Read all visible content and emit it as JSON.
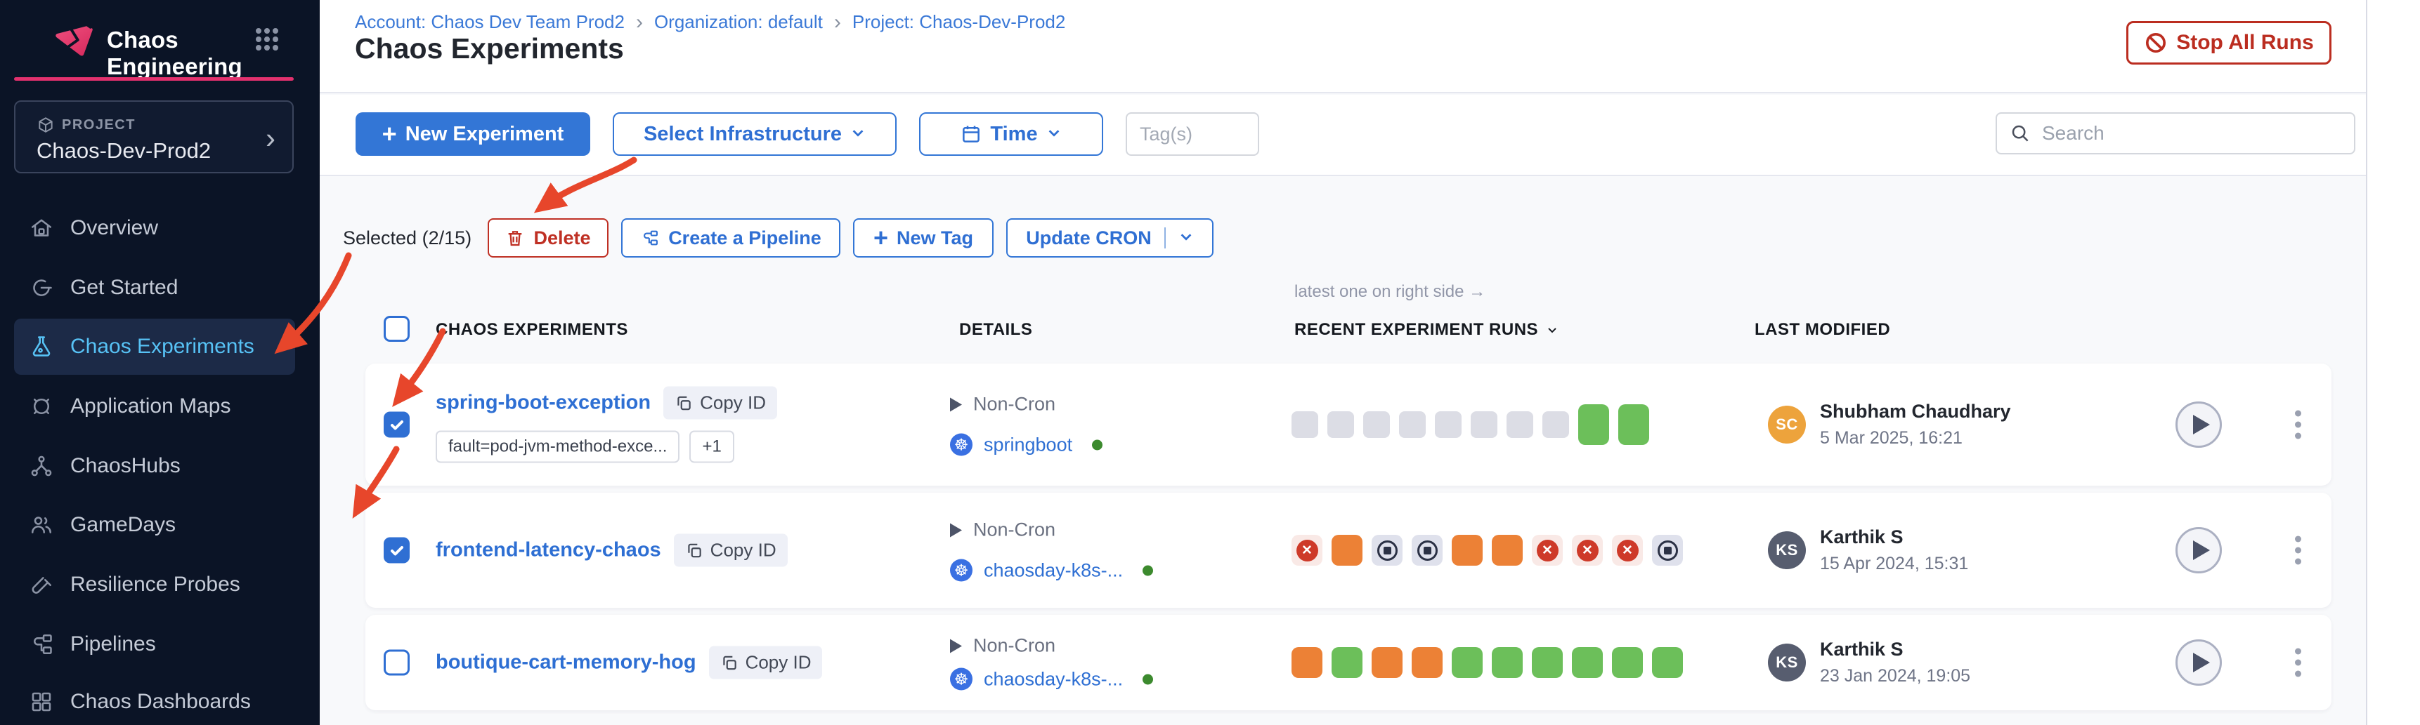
{
  "sidebar": {
    "title": "Chaos Engineering",
    "project_label": "PROJECT",
    "project_name": "Chaos-Dev-Prod2",
    "chevron": "›",
    "items": [
      {
        "label": "Overview"
      },
      {
        "label": "Get Started"
      },
      {
        "label": "Chaos Experiments",
        "active": true
      },
      {
        "label": "Application Maps"
      },
      {
        "label": "ChaosHubs"
      },
      {
        "label": "GameDays"
      },
      {
        "label": "Resilience Probes"
      },
      {
        "label": "Pipelines"
      },
      {
        "label": "Chaos Dashboards"
      }
    ]
  },
  "breadcrumb": {
    "account": "Account: Chaos Dev Team Prod2",
    "org": "Organization: default",
    "project": "Project: Chaos-Dev-Prod2",
    "separator": "›"
  },
  "header": {
    "title": "Chaos Experiments",
    "stop_all_runs": "Stop All Runs"
  },
  "toolbar": {
    "new_experiment": "New Experiment",
    "select_infrastructure": "Select Infrastructure",
    "time": "Time",
    "tags_placeholder": "Tag(s)",
    "search_placeholder": "Search"
  },
  "bulk_actions": {
    "selected": "Selected (2/15)",
    "delete": "Delete",
    "create_pipeline": "Create a Pipeline",
    "new_tag": "New Tag",
    "update_cron": "Update CRON"
  },
  "icons": {
    "plus": "+",
    "fail_cross": "✕",
    "k8s": "☸"
  },
  "table": {
    "runs_note": "latest one on right side →",
    "columns": {
      "experiments": "CHAOS EXPERIMENTS",
      "details": "DETAILS",
      "recent_runs": "RECENT EXPERIMENT RUNS",
      "last_modified": "LAST MODIFIED"
    },
    "rows": [
      {
        "name": "spring-boot-exception",
        "copy_id": "Copy ID",
        "checked": true,
        "tags": [
          "fault=pod-jvm-method-exce...",
          "+1"
        ],
        "schedule": "Non-Cron",
        "infrastructure": "springboot",
        "runs": [
          "none",
          "none",
          "none",
          "none",
          "none",
          "none",
          "none",
          "none",
          "completed",
          "completed"
        ],
        "modified_by": "Shubham Chaudhary",
        "initials": "SC",
        "avatar_color": "#EDA33C",
        "modified_date": "5 Mar 2025, 16:21"
      },
      {
        "name": "frontend-latency-chaos",
        "copy_id": "Copy ID",
        "checked": true,
        "tags": [],
        "schedule": "Non-Cron",
        "infrastructure": "chaosday-k8s-...",
        "runs": [
          "failed",
          "running",
          "stopped",
          "stopped",
          "running",
          "running",
          "failed",
          "failed",
          "failed",
          "stopped"
        ],
        "modified_by": "Karthik S",
        "initials": "KS",
        "avatar_color": "#575D6F",
        "modified_date": "15 Apr 2024, 15:31"
      },
      {
        "name": "boutique-cart-memory-hog",
        "copy_id": "Copy ID",
        "checked": false,
        "tags": [],
        "schedule": "Non-Cron",
        "infrastructure": "chaosday-k8s-...",
        "runs": [
          "running",
          "completed",
          "running",
          "running",
          "completed",
          "completed",
          "completed",
          "completed",
          "completed",
          "completed"
        ],
        "modified_by": "Karthik S",
        "initials": "KS",
        "avatar_color": "#575D6F",
        "modified_date": "23 Jan 2024, 19:05"
      }
    ]
  },
  "colors": {
    "accent_blue": "#3376D6",
    "link_blue": "#2F6FD3",
    "danger_red": "#BB2D20",
    "sidebar_active_text": "#57C2F5",
    "run_completed": "#6CBF5A",
    "run_running": "#EC8136",
    "run_failed": "#CE3A29",
    "run_stopped": "#2B3145",
    "run_none": "#DCDDE5",
    "annotation_arrow": "#E7462B"
  },
  "annotations": {
    "arrow_targets": [
      "delete-button",
      "sidebar-item-chaos-experiments",
      "row-1-checkbox",
      "row-2-checkbox"
    ]
  }
}
